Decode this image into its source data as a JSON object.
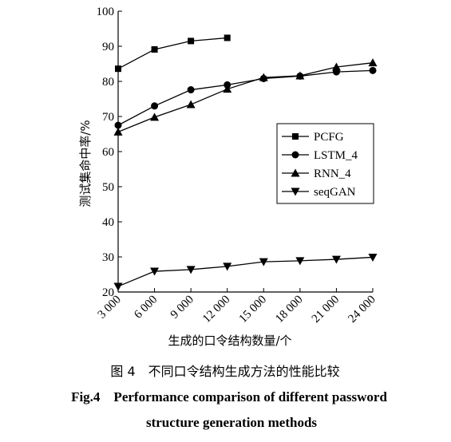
{
  "chart_data": {
    "type": "line",
    "xlabel": "生成的口令结构数量/个",
    "ylabel": "测试集命中率/%",
    "caption_cn": "图 4　不同口令结构生成方法的性能比较",
    "caption_en_line1": "Fig.4　Performance comparison of different password",
    "caption_en_line2": "structure generation methods",
    "xlim": [
      3000,
      24000
    ],
    "xticks": [
      {
        "value": 3000,
        "label": "3 000"
      },
      {
        "value": 6000,
        "label": "6 000"
      },
      {
        "value": 9000,
        "label": "9 000"
      },
      {
        "value": 12000,
        "label": "12 000"
      },
      {
        "value": 15000,
        "label": "15 000"
      },
      {
        "value": 18000,
        "label": "18 000"
      },
      {
        "value": 21000,
        "label": "21 000"
      },
      {
        "value": 24000,
        "label": "24 000"
      }
    ],
    "ylim": [
      20,
      100
    ],
    "yticks": [
      20,
      30,
      40,
      50,
      60,
      70,
      80,
      90,
      100
    ],
    "legend": "right",
    "series": [
      {
        "name": "PCFG",
        "color": "#000000",
        "marker": "square",
        "x": [
          3000,
          6000,
          9000,
          12000
        ],
        "values": [
          83.6,
          89.1,
          91.5,
          92.4
        ]
      },
      {
        "name": "LSTM_4",
        "color": "#000000",
        "marker": "circle",
        "x": [
          3000,
          6000,
          9000,
          12000,
          15000,
          18000,
          21000,
          24000
        ],
        "values": [
          67.5,
          73,
          77.6,
          79,
          80.8,
          81.5,
          82.7,
          83.1
        ]
      },
      {
        "name": "RNN_4",
        "color": "#000000",
        "marker": "triangle-up",
        "x": [
          3000,
          6000,
          9000,
          12000,
          15000,
          18000,
          21000,
          24000
        ],
        "values": [
          65.6,
          69.8,
          73.4,
          77.8,
          81.1,
          81.6,
          84.1,
          85.3
        ]
      },
      {
        "name": "seqGAN",
        "color": "#000000",
        "marker": "triangle-down",
        "x": [
          3000,
          6000,
          9000,
          12000,
          15000,
          18000,
          21000,
          24000
        ],
        "values": [
          21.6,
          25.9,
          26.4,
          27.3,
          28.6,
          28.9,
          29.3,
          29.9
        ]
      }
    ]
  }
}
